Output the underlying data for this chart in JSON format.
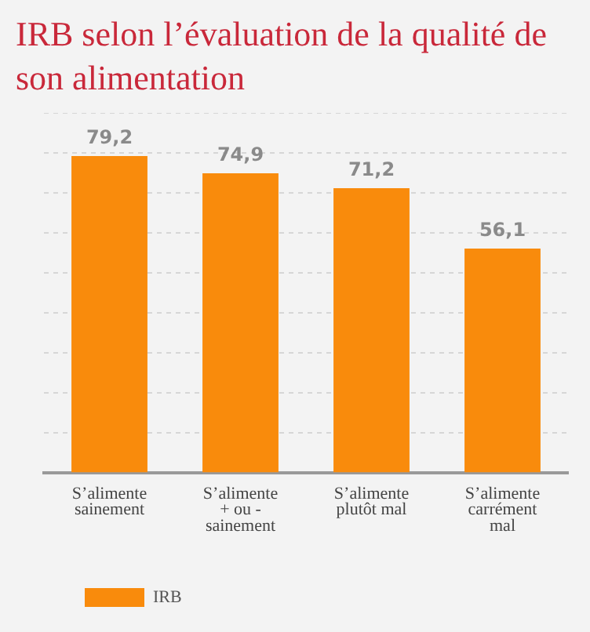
{
  "chart_data": {
    "type": "bar",
    "title": "IRB selon l’évaluation de la qualité de son alimentation",
    "categories": [
      "S’alimente sainement",
      "S’alimente + ou - sainement",
      "S’alimente plutôt mal",
      "S’alimente carrément mal"
    ],
    "series": [
      {
        "name": "IRB",
        "color": "#f98b0c",
        "values": [
          79.2,
          74.9,
          71.2,
          56.1
        ],
        "value_labels": [
          "79,2",
          "74,9",
          "71,2",
          "56,1"
        ]
      }
    ],
    "tick_labels": "x",
    "grid": "y",
    "legend": "bottom left"
  }
}
